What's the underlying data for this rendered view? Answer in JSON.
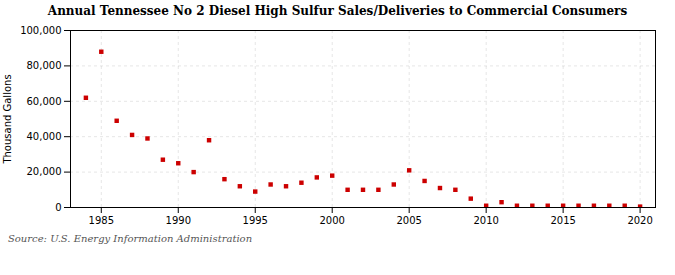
{
  "chart_data": {
    "type": "scatter",
    "title": "Annual Tennessee No 2 Diesel High Sulfur Sales/Deliveries to Commercial Consumers",
    "ylabel": "Thousand Gallons",
    "caption": "Source: U.S. Energy Information Administration",
    "color": "#cc0000",
    "marker": "square",
    "grid": true,
    "xlim": [
      1983,
      2021
    ],
    "ylim": [
      0,
      100000
    ],
    "xticks": [
      1985,
      1990,
      1995,
      2000,
      2005,
      2010,
      2015,
      2020
    ],
    "yticks": [
      0,
      {
        "value": 20000,
        "label": "20,000"
      },
      {
        "value": 40000,
        "label": "40,000"
      },
      {
        "value": 60000,
        "label": "60,000"
      },
      {
        "value": 80000,
        "label": "80,000"
      },
      {
        "value": 100000,
        "label": "100,000"
      }
    ],
    "x": [
      1984,
      1985,
      1986,
      1987,
      1988,
      1989,
      1990,
      1991,
      1992,
      1993,
      1994,
      1995,
      1996,
      1997,
      1998,
      1999,
      2000,
      2001,
      2002,
      2003,
      2004,
      2005,
      2006,
      2007,
      2008,
      2009,
      2010,
      2011,
      2012,
      2013,
      2014,
      2015,
      2016,
      2017,
      2018,
      2019,
      2020
    ],
    "values": [
      62000,
      88000,
      49000,
      41000,
      39000,
      27000,
      25000,
      20000,
      38000,
      16000,
      12000,
      9000,
      13000,
      12000,
      14000,
      17000,
      18000,
      10000,
      10000,
      10000,
      13000,
      21000,
      15000,
      11000,
      10000,
      5000,
      1000,
      3000,
      1000,
      1000,
      1000,
      1000,
      1000,
      1000,
      1000,
      1000,
      500
    ]
  }
}
